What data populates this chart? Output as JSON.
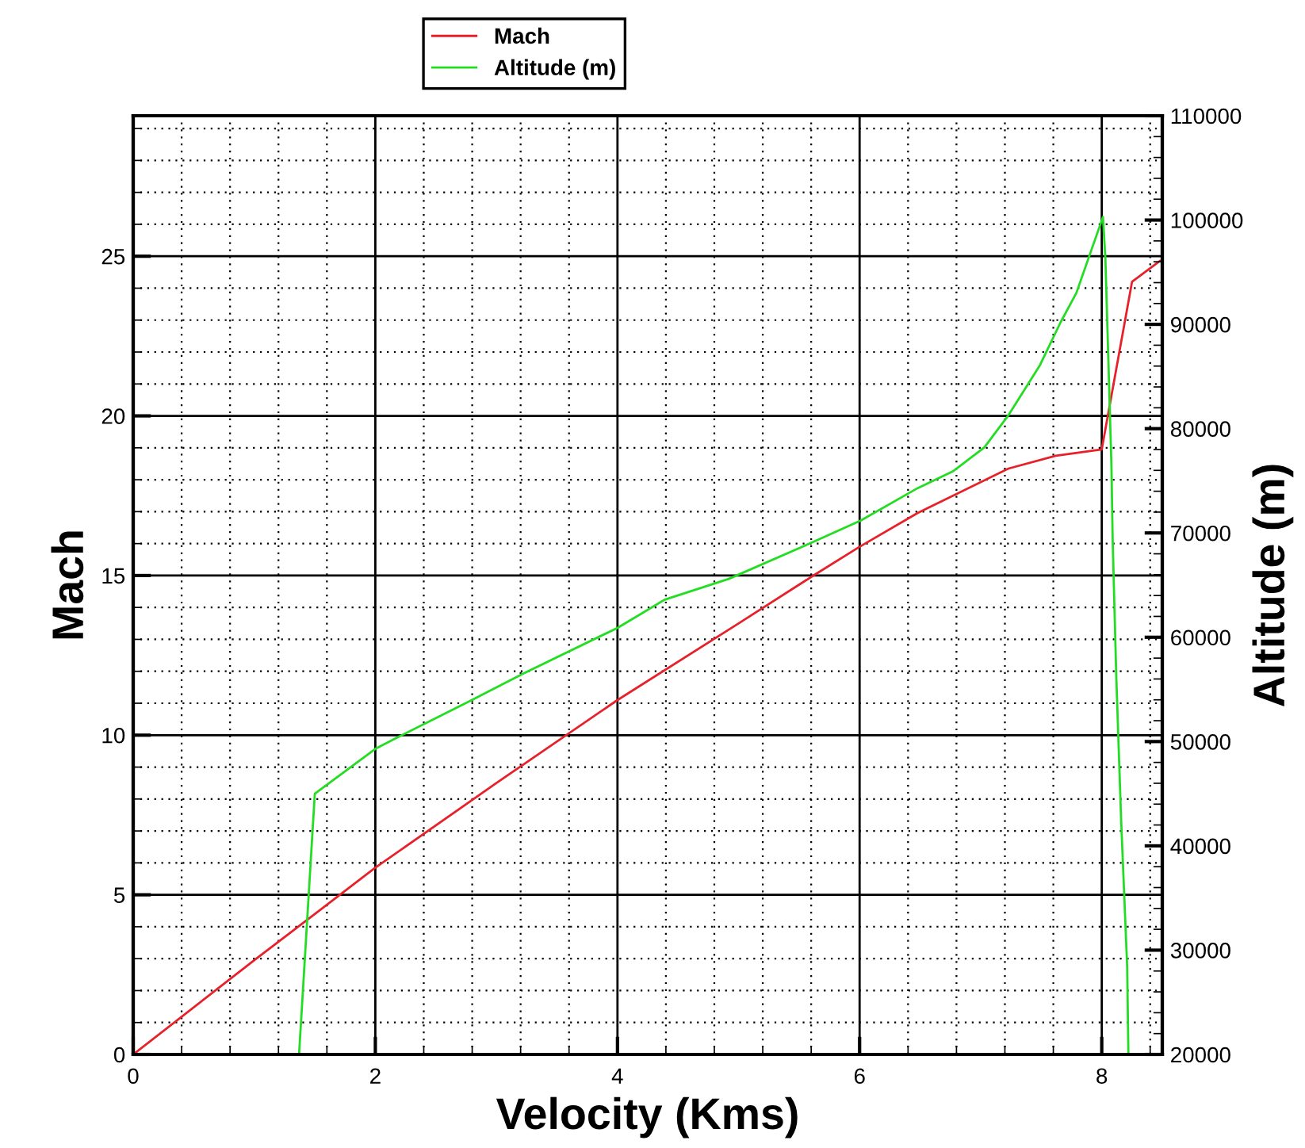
{
  "chart_data": {
    "type": "line",
    "xlabel": "Velocity (Kms)",
    "ylabel": "Mach",
    "y2label": "Altitude (m)",
    "xlim": [
      0,
      8.5
    ],
    "xticks": [
      0,
      2,
      4,
      6,
      8
    ],
    "ylim": [
      0,
      29.4
    ],
    "yticks": [
      0,
      5,
      10,
      15,
      20,
      25
    ],
    "y2lim": [
      20000,
      110000
    ],
    "y2ticks": [
      20000,
      30000,
      40000,
      50000,
      60000,
      70000,
      80000,
      90000,
      100000,
      110000
    ],
    "grid": true,
    "legend": "top",
    "line_style": "solid",
    "marker": "none",
    "series": [
      {
        "name": "Mach",
        "color": "#e8202a",
        "x": [
          0,
          1,
          1.5,
          2,
          3,
          4,
          5,
          5.61,
          6,
          6.48,
          7.23,
          7.62,
          8.0,
          8.25,
          8.48
        ],
        "values": [
          0,
          2.95,
          4.4,
          5.85,
          8.5,
          11.1,
          13.5,
          14.98,
          15.9,
          16.96,
          18.35,
          18.75,
          18.95,
          24.2,
          24.85
        ]
      },
      {
        "name": "Altitude (m)",
        "color": "#22dd22",
        "axis": "y2",
        "x": [
          1.37,
          1.5,
          2,
          2.2,
          2.8,
          3.22,
          4,
          4.39,
          4.92,
          5.61,
          6.01,
          6.48,
          6.77,
          7.03,
          7.23,
          7.49,
          7.66,
          7.79,
          8.01,
          8.03,
          8.08,
          8.09,
          8.12,
          8.16,
          8.21,
          8.22
        ],
        "values": [
          20000,
          45000,
          49300,
          50500,
          54000,
          56500,
          60900,
          63600,
          65600,
          69100,
          71200,
          74300,
          75900,
          78200,
          81300,
          86100,
          90200,
          93000,
          100300,
          96300,
          76500,
          69400,
          56200,
          42500,
          28400,
          20000
        ]
      }
    ]
  }
}
